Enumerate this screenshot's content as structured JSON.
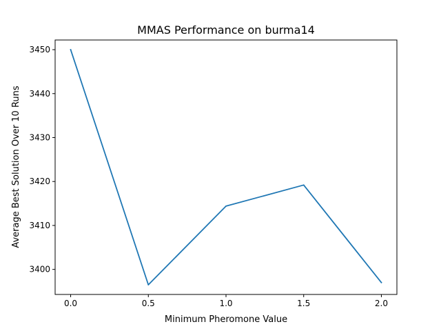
{
  "chart_data": {
    "type": "line",
    "title": "MMAS Performance on burma14",
    "xlabel": "Minimum Pheromone Value",
    "ylabel": "Average Best Solution Over 10 Runs",
    "xlim": [
      -0.1,
      2.1
    ],
    "ylim": [
      3394.3,
      3452.2
    ],
    "xticks": [
      0.0,
      0.5,
      1.0,
      1.5,
      2.0
    ],
    "xtick_labels": [
      "0.0",
      "0.5",
      "1.0",
      "1.5",
      "2.0"
    ],
    "yticks": [
      3400,
      3410,
      3420,
      3430,
      3440,
      3450
    ],
    "ytick_labels": [
      "3400",
      "3410",
      "3420",
      "3430",
      "3440",
      "3450"
    ],
    "grid": false,
    "legend": "none",
    "series": [
      {
        "x": [
          0.0,
          0.5,
          1.0,
          1.5,
          2.0
        ],
        "y": [
          3450.0,
          3396.5,
          3414.4,
          3419.2,
          3397.0
        ],
        "color": "#1f77b4"
      }
    ]
  }
}
